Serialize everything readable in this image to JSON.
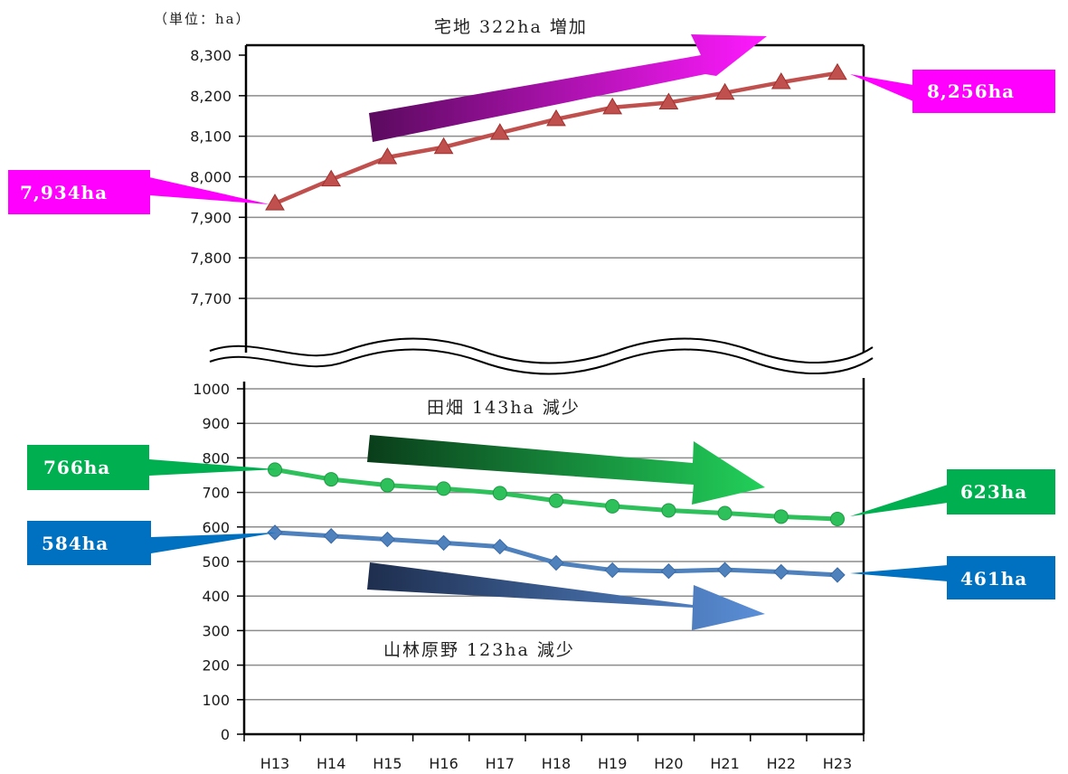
{
  "unit_label": "（単位：ha）",
  "annotations": {
    "residential": "宅地 322ha 増加",
    "farmland": "田畑 143ha 減少",
    "forest": "山林原野 123ha 減少"
  },
  "callouts": {
    "residential_start": "7,934ha",
    "residential_end": "8,256ha",
    "farmland_start": "766ha",
    "farmland_end": "623ha",
    "forest_start": "584ha",
    "forest_end": "461ha"
  },
  "colors": {
    "residential": "#c0504d",
    "farmland": "#2ec05a",
    "forest": "#4f81bd",
    "callout_residential": "#ff00ff",
    "callout_farmland": "#00b050",
    "callout_forest": "#0070c0",
    "grid": "#8c8c8c"
  },
  "chart_data": [
    {
      "type": "line",
      "categories": [
        "H13",
        "H14",
        "H15",
        "H16",
        "H17",
        "H18",
        "H19",
        "H20",
        "H21",
        "H22",
        "H23"
      ],
      "ylim": [
        7600,
        8300
      ],
      "y_ticks": [
        "7,700",
        "7,800",
        "7,900",
        "8,000",
        "8,100",
        "8,200",
        "8,300"
      ],
      "y_tick_values": [
        7700,
        7800,
        7900,
        8000,
        8100,
        8200,
        8300
      ],
      "y_broken_axis": true,
      "grid": true,
      "series": [
        {
          "name": "宅地",
          "marker": "triangle",
          "values": [
            7934,
            7993,
            8048,
            8073,
            8108,
            8142,
            8171,
            8183,
            8207,
            8233,
            8256
          ]
        }
      ]
    },
    {
      "type": "line",
      "categories": [
        "H13",
        "H14",
        "H15",
        "H16",
        "H17",
        "H18",
        "H19",
        "H20",
        "H21",
        "H22",
        "H23"
      ],
      "ylim": [
        0,
        1000
      ],
      "y_ticks": [
        "0",
        "100",
        "200",
        "300",
        "400",
        "500",
        "600",
        "700",
        "800",
        "900",
        "1000"
      ],
      "y_tick_values": [
        0,
        100,
        200,
        300,
        400,
        500,
        600,
        700,
        800,
        900,
        1000
      ],
      "x_ticks": [
        "H13",
        "H14",
        "H15",
        "H16",
        "H17",
        "H18",
        "H19",
        "H20",
        "H21",
        "H22",
        "H23"
      ],
      "grid": true,
      "series": [
        {
          "name": "田畑",
          "marker": "circle",
          "values": [
            766,
            738,
            721,
            711,
            698,
            676,
            660,
            648,
            640,
            630,
            623
          ]
        },
        {
          "name": "山林原野",
          "marker": "diamond",
          "values": [
            584,
            574,
            564,
            554,
            543,
            496,
            475,
            472,
            476,
            470,
            461
          ]
        }
      ]
    }
  ]
}
